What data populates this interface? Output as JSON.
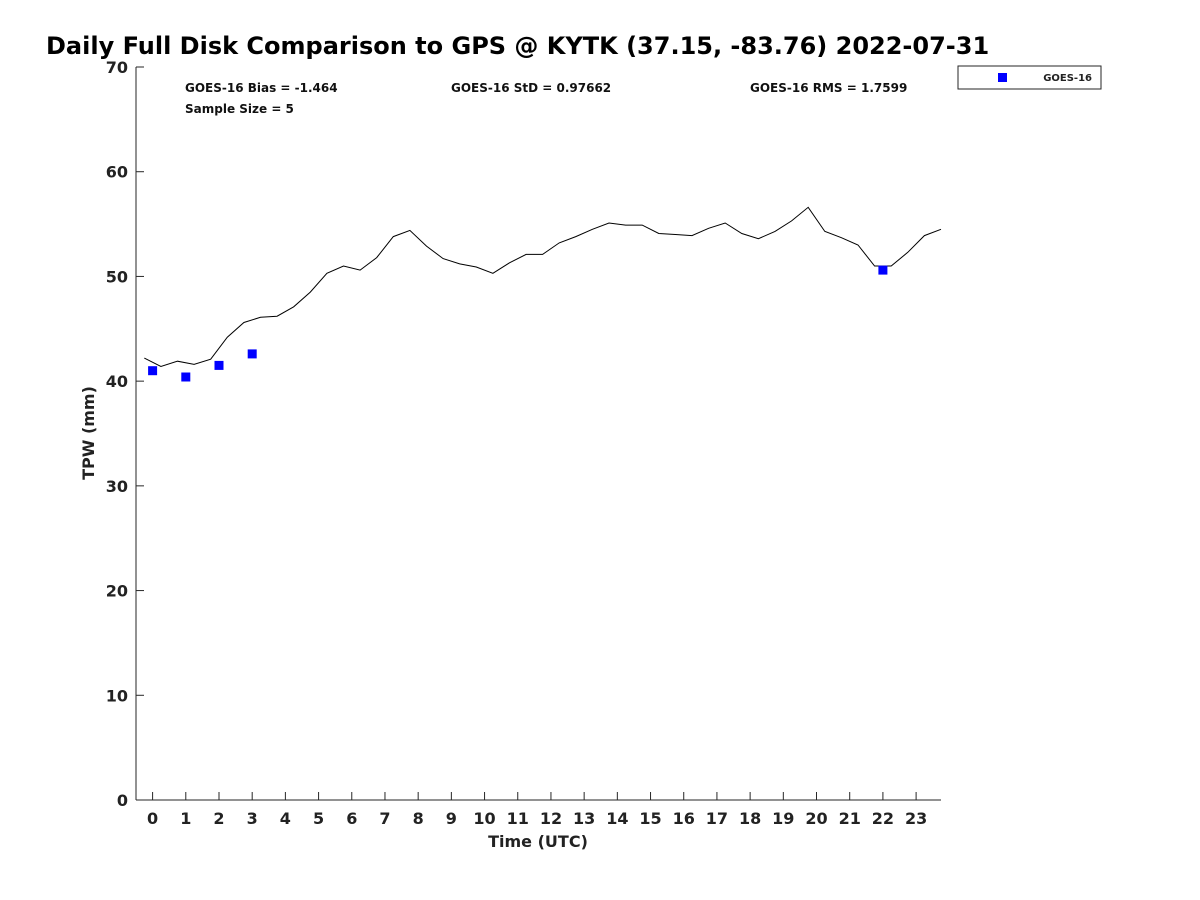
{
  "chart_data": {
    "type": "scatter",
    "title": "Daily Full Disk Comparison to GPS @ KYTK (37.15, -83.76) 2022-07-31",
    "xlabel": "Time (UTC)",
    "ylabel": "TPW (mm)",
    "xlim": [
      -0.5,
      23.75
    ],
    "ylim": [
      0,
      70
    ],
    "x_ticks": [
      0,
      1,
      2,
      3,
      4,
      5,
      6,
      7,
      8,
      9,
      10,
      11,
      12,
      13,
      14,
      15,
      16,
      17,
      18,
      19,
      20,
      21,
      22,
      23
    ],
    "x_tick_labels": [
      "0",
      "1",
      "2",
      "3",
      "4",
      "5",
      "6",
      "7",
      "8",
      "9",
      "10",
      "11",
      "12",
      "13",
      "14",
      "15",
      "16",
      "17",
      "18",
      "19",
      "20",
      "21",
      "22",
      "23"
    ],
    "y_ticks": [
      0,
      10,
      20,
      30,
      40,
      50,
      60,
      70
    ],
    "y_tick_labels": [
      "0",
      "10",
      "20",
      "30",
      "40",
      "50",
      "60",
      "70"
    ],
    "grid": false,
    "legend_position": "outside-top-right",
    "stats": {
      "bias": "GOES-16 Bias = -1.464",
      "std": "GOES-16 StD = 0.97662",
      "rms": "GOES-16 RMS = 1.7599",
      "sample": "Sample Size = 5"
    },
    "series": [
      {
        "name": "GOES-16",
        "kind": "scatter",
        "marker": "square",
        "color": "#0000ff",
        "x": [
          0,
          1,
          2,
          3,
          22
        ],
        "y": [
          41.0,
          40.4,
          41.5,
          42.6,
          50.6
        ]
      },
      {
        "kind": "line",
        "color": "#000000",
        "x": [
          -0.25,
          0.25,
          0.75,
          1.25,
          1.75,
          2.25,
          2.75,
          3.25,
          3.75,
          4.25,
          4.75,
          5.25,
          5.75,
          6.25,
          6.75,
          7.25,
          7.75,
          8.25,
          8.75,
          9.25,
          9.75,
          10.25,
          10.75,
          11.25,
          11.75,
          12.25,
          12.75,
          13.25,
          13.75,
          14.25,
          14.75,
          15.25,
          15.75,
          16.25,
          16.75,
          17.25,
          17.75,
          18.25,
          18.75,
          19.25,
          19.75,
          20.25,
          20.75,
          21.25,
          21.75,
          22.25,
          22.75,
          23.25,
          23.75
        ],
        "y": [
          42.2,
          41.4,
          41.9,
          41.6,
          42.1,
          44.2,
          45.6,
          46.1,
          46.2,
          47.1,
          48.5,
          50.3,
          51.0,
          50.6,
          51.8,
          53.8,
          54.4,
          52.9,
          51.7,
          51.2,
          50.9,
          50.3,
          51.3,
          52.1,
          52.1,
          53.2,
          53.8,
          54.5,
          55.1,
          54.9,
          54.9,
          54.1,
          54.0,
          53.9,
          54.6,
          55.1,
          54.1,
          53.6,
          54.3,
          55.3,
          56.6,
          54.3,
          53.7,
          53.0,
          51.0,
          51.0,
          52.3,
          53.9,
          54.5
        ]
      }
    ]
  }
}
